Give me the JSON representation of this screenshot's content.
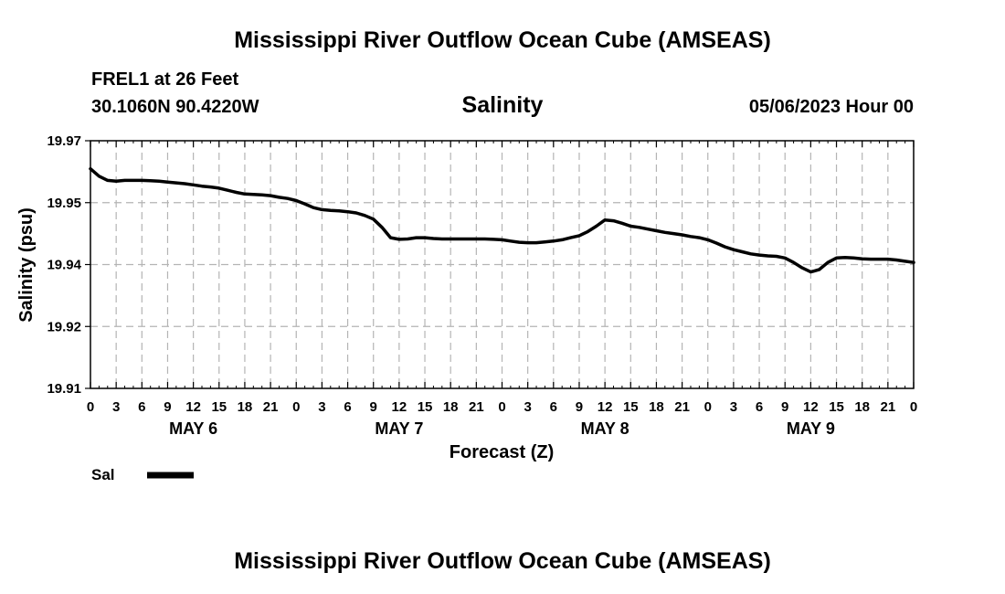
{
  "header": {
    "title_top": "Mississippi River Outflow Ocean Cube (AMSEAS)",
    "station": "FREL1 at 26 Feet",
    "coordinates": "30.1060N  90.4220W",
    "datetime": "05/06/2023 Hour 00",
    "title_bottom": "Mississippi River Outflow Ocean Cube (AMSEAS)"
  },
  "chart_data": {
    "type": "line",
    "title": "Salinity",
    "xlabel": "Forecast (Z)",
    "ylabel": "Salinity (psu)",
    "ylim": [
      19.91,
      19.97
    ],
    "yticks": [
      "19.91",
      "19.92",
      "19.94",
      "19.95",
      "19.97"
    ],
    "ytick_values": [
      19.91,
      19.925,
      19.94,
      19.955,
      19.97
    ],
    "grid": true,
    "xlim_hours": [
      0,
      96
    ],
    "xtick_labels": [
      "0",
      "3",
      "6",
      "9",
      "12",
      "15",
      "18",
      "21",
      "0",
      "3",
      "6",
      "9",
      "12",
      "15",
      "18",
      "21",
      "0",
      "3",
      "6",
      "9",
      "12",
      "15",
      "18",
      "21",
      "0",
      "3",
      "6",
      "9",
      "12",
      "15",
      "18",
      "21",
      "0"
    ],
    "day_labels": [
      {
        "label": "MAY 6",
        "hour": 12
      },
      {
        "label": "MAY 7",
        "hour": 36
      },
      {
        "label": "MAY 8",
        "hour": 60
      },
      {
        "label": "MAY 9",
        "hour": 84
      }
    ],
    "legend": [
      {
        "name": "Sal",
        "color": "#000000"
      }
    ],
    "series": [
      {
        "name": "Sal",
        "color": "#000000",
        "hours": [
          0,
          1,
          2,
          3,
          4,
          5,
          6,
          7,
          8,
          9,
          10,
          11,
          12,
          13,
          14,
          15,
          16,
          17,
          18,
          19,
          20,
          21,
          22,
          23,
          24,
          25,
          26,
          27,
          28,
          29,
          30,
          31,
          32,
          33,
          34,
          35,
          36,
          37,
          38,
          39,
          40,
          41,
          42,
          43,
          44,
          45,
          46,
          47,
          48,
          49,
          50,
          51,
          52,
          53,
          54,
          55,
          56,
          57,
          58,
          59,
          60,
          61,
          62,
          63,
          64,
          65,
          66,
          67,
          68,
          69,
          70,
          71,
          72,
          73,
          74,
          75,
          76,
          77,
          78,
          79,
          80,
          81,
          82,
          83,
          84,
          85,
          86,
          87,
          88,
          89,
          90,
          91,
          92,
          93,
          94,
          95,
          96
        ],
        "values": [
          19.9632,
          19.9614,
          19.9604,
          19.9602,
          19.9604,
          19.9604,
          19.9604,
          19.9603,
          19.9602,
          19.96,
          19.9598,
          19.9596,
          19.9593,
          19.959,
          19.9588,
          19.9585,
          19.958,
          19.9575,
          19.9571,
          19.957,
          19.9569,
          19.9567,
          19.9563,
          19.956,
          19.9555,
          19.9547,
          19.9538,
          19.9533,
          19.9531,
          19.953,
          19.9528,
          19.9525,
          19.9519,
          19.951,
          19.949,
          19.9465,
          19.9461,
          19.9462,
          19.9465,
          19.9465,
          19.9463,
          19.9462,
          19.9462,
          19.9462,
          19.9462,
          19.9462,
          19.9462,
          19.9461,
          19.946,
          19.9457,
          19.9454,
          19.9453,
          19.9453,
          19.9455,
          19.9457,
          19.946,
          19.9465,
          19.947,
          19.948,
          19.9493,
          19.9508,
          19.9506,
          19.95,
          19.9493,
          19.949,
          19.9486,
          19.9482,
          19.9478,
          19.9475,
          19.9472,
          19.9468,
          19.9465,
          19.946,
          19.9452,
          19.9443,
          19.9436,
          19.9431,
          19.9426,
          19.9423,
          19.9421,
          19.942,
          19.9416,
          19.9405,
          19.9392,
          19.9382,
          19.9388,
          19.9405,
          19.9416,
          19.9417,
          19.9416,
          19.9414,
          19.9413,
          19.9413,
          19.9413,
          19.9411,
          19.9408,
          19.9405
        ]
      }
    ]
  }
}
